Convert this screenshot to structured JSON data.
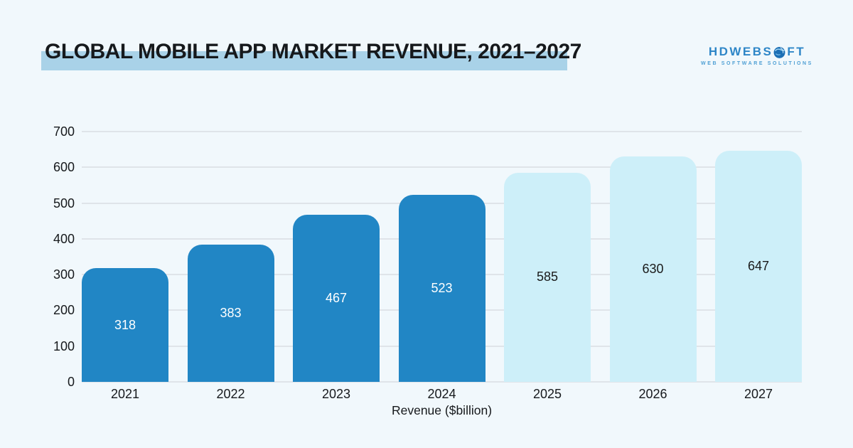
{
  "title": "GLOBAL MOBILE APP MARKET REVENUE, 2021–2027",
  "logo": {
    "name_pre": "HDWEBS",
    "name_post": "FT",
    "tagline": "WEB SOFTWARE SOLUTIONS"
  },
  "chart_data": {
    "type": "bar",
    "categories": [
      "2021",
      "2022",
      "2023",
      "2024",
      "2025",
      "2026",
      "2027"
    ],
    "values": [
      318,
      383,
      467,
      523,
      585,
      630,
      647
    ],
    "forecast_from_index": 4,
    "title": "GLOBAL MOBILE APP MARKET REVENUE, 2021–2027",
    "xlabel": "Revenue ($billion)",
    "ylabel": "",
    "ylim": [
      0,
      700
    ],
    "yticks": [
      0,
      100,
      200,
      300,
      400,
      500,
      600,
      700
    ],
    "grid": true,
    "legend": "none"
  },
  "colors": {
    "background": "#F1F8FC",
    "title_highlight": "#A9D2E8",
    "text": "#16191C",
    "gridline": "#DFE4E9",
    "bar_actual": "#2186C5",
    "bar_forecast": "#CDEFF9",
    "bar_label_on_actual": "#FFFFFF",
    "bar_label_on_forecast": "#1A1A1A",
    "logo_blue": "#2E86C7"
  }
}
